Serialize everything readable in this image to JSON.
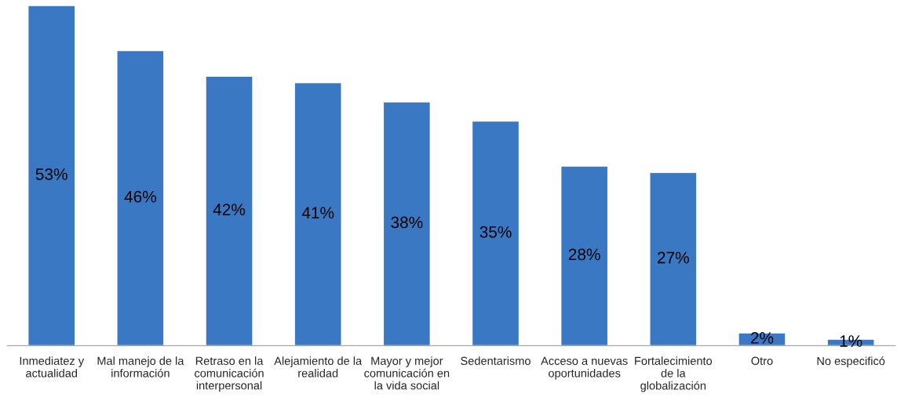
{
  "chart_data": {
    "type": "bar",
    "categories": [
      "Inmediatez y\nactualidad",
      "Mal manejo de la\ninformación",
      "Retraso en la\ncomunicación\ninterpersonal",
      "Alejamiento de la\nrealidad",
      "Mayor y mejor\ncomunicación en\nla vida social",
      "Sedentarismo",
      "Acceso a nuevas\noportunidades",
      "Fortalecimiento\nde la\nglobalización",
      "Otro",
      "No especificó"
    ],
    "values": [
      53,
      46,
      42,
      41,
      38,
      35,
      28,
      27,
      2,
      1
    ],
    "value_labels": [
      "53%",
      "46%",
      "42%",
      "41%",
      "38%",
      "35%",
      "28%",
      "27%",
      "2%",
      "1%"
    ],
    "color": "#3a78c4",
    "grid": false,
    "legend": false
  }
}
